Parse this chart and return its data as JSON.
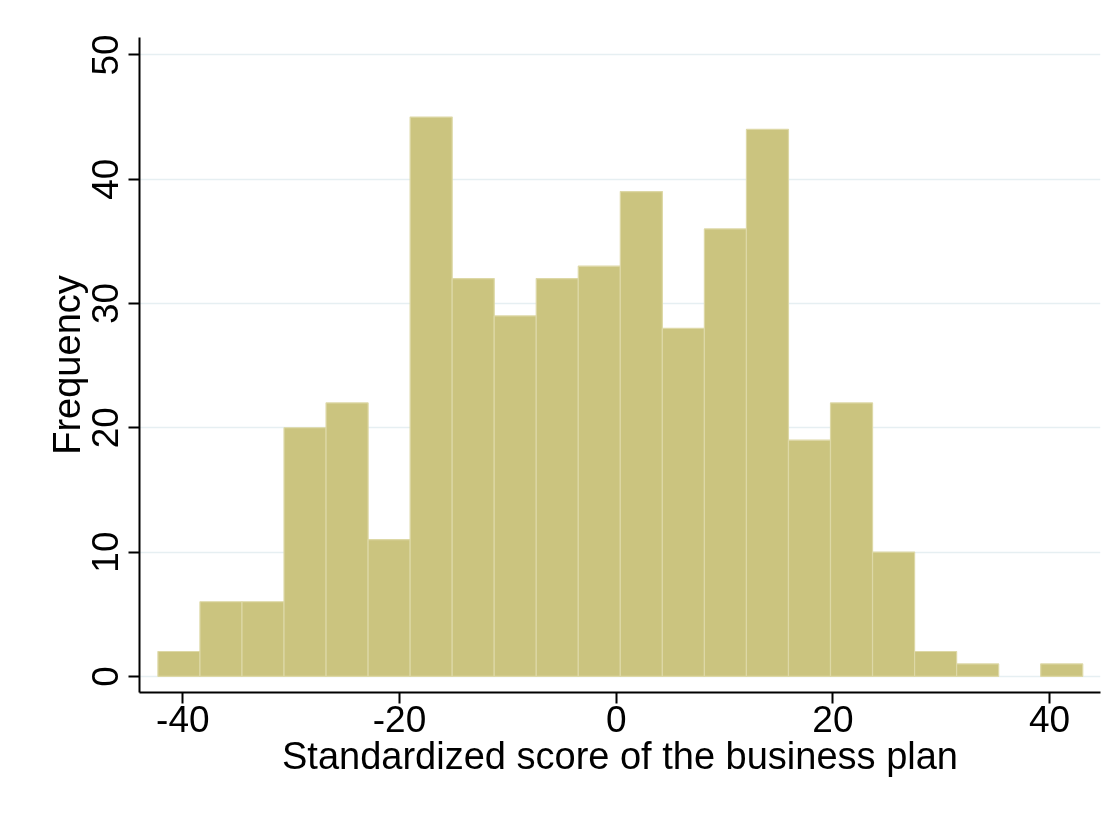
{
  "chart_data": {
    "type": "histogram",
    "xlabel": "Standardized score of the business plan",
    "ylabel": "Frequency",
    "bins": [
      -42.3,
      -38.42,
      -34.54,
      -30.66,
      -26.78,
      -22.9,
      -19.02,
      -15.14,
      -11.26,
      -7.38,
      -3.5,
      0.38,
      4.26,
      8.14,
      12.02,
      15.9,
      19.78,
      23.66,
      27.54,
      31.42,
      35.3,
      39.18,
      43.06
    ],
    "values": [
      2,
      6,
      6,
      20,
      22,
      11,
      45,
      32,
      29,
      32,
      33,
      39,
      28,
      36,
      44,
      19,
      22,
      10,
      2,
      1,
      0,
      1
    ],
    "color": "#cbc47f",
    "xlim": [
      -44,
      44.7
    ],
    "ylim": [
      -1.3,
      51.4
    ],
    "xticks": [
      -40,
      -20,
      0,
      20,
      40
    ],
    "yticks": [
      0,
      10,
      20,
      30,
      40,
      50
    ],
    "grid": "y"
  }
}
